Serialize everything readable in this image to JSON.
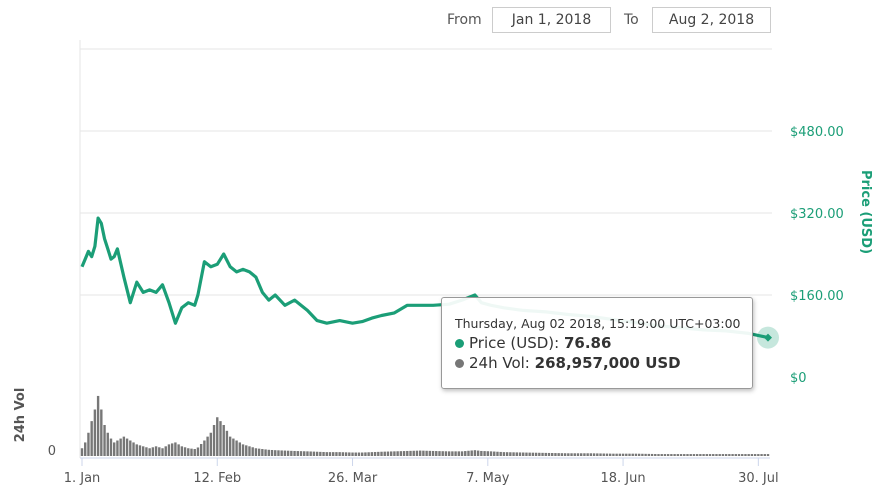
{
  "range_selector": {
    "from_label": "From",
    "from_value": "Jan 1, 2018",
    "to_label": "To",
    "to_value": "Aug 2, 2018"
  },
  "tooltip": {
    "date": "Thursday, Aug 02 2018, 15:19:00 UTC+03:00",
    "price_label": "Price (USD):",
    "price_value": "76.86",
    "vol_label": "24h Vol:",
    "vol_value": "268,957,000 USD"
  },
  "colors": {
    "price": "#1b9e77",
    "volume": "#777777",
    "marker": "#1b9e77"
  },
  "chart_data": {
    "type": "line",
    "x_unit": "date",
    "x_ticks": [
      "1. Jan",
      "12. Feb",
      "26. Mar",
      "7. May",
      "18. Jun",
      "30. Jul"
    ],
    "price_axis": {
      "title": "Price (USD)",
      "ticks": [
        "$0",
        "$160.00",
        "$320.00",
        "$480.00"
      ],
      "ylim": [
        0,
        640
      ]
    },
    "volume_axis": {
      "title": "24h Vol",
      "ticks": [
        "0"
      ]
    },
    "grid": true,
    "series": [
      {
        "name": "Price (USD)",
        "x": [
          "2018-01-01",
          "2018-01-02",
          "2018-01-03",
          "2018-01-04",
          "2018-01-05",
          "2018-01-06",
          "2018-01-07",
          "2018-01-08",
          "2018-01-09",
          "2018-01-10",
          "2018-01-11",
          "2018-01-12",
          "2018-01-14",
          "2018-01-16",
          "2018-01-18",
          "2018-01-20",
          "2018-01-22",
          "2018-01-24",
          "2018-01-26",
          "2018-01-28",
          "2018-01-30",
          "2018-02-01",
          "2018-02-03",
          "2018-02-05",
          "2018-02-06",
          "2018-02-08",
          "2018-02-10",
          "2018-02-12",
          "2018-02-14",
          "2018-02-16",
          "2018-02-18",
          "2018-02-20",
          "2018-02-22",
          "2018-02-24",
          "2018-02-26",
          "2018-02-28",
          "2018-03-02",
          "2018-03-05",
          "2018-03-08",
          "2018-03-12",
          "2018-03-15",
          "2018-03-18",
          "2018-03-22",
          "2018-03-26",
          "2018-03-29",
          "2018-04-01",
          "2018-04-04",
          "2018-04-08",
          "2018-04-12",
          "2018-04-16",
          "2018-04-20",
          "2018-04-25",
          "2018-04-29",
          "2018-05-03",
          "2018-05-05",
          "2018-05-08",
          "2018-05-12",
          "2018-05-18",
          "2018-05-25",
          "2018-06-01",
          "2018-06-08",
          "2018-06-15",
          "2018-06-22",
          "2018-06-29",
          "2018-07-06",
          "2018-07-13",
          "2018-07-20",
          "2018-07-27",
          "2018-08-02"
        ],
        "y": [
          215,
          230,
          245,
          235,
          255,
          310,
          300,
          270,
          250,
          230,
          235,
          250,
          195,
          145,
          185,
          165,
          170,
          165,
          180,
          145,
          105,
          135,
          145,
          140,
          160,
          225,
          215,
          220,
          240,
          215,
          205,
          210,
          205,
          195,
          165,
          150,
          160,
          140,
          150,
          130,
          110,
          105,
          110,
          105,
          108,
          115,
          120,
          125,
          140,
          140,
          140,
          142,
          150,
          160,
          145,
          140,
          135,
          130,
          127,
          122,
          118,
          112,
          106,
          100,
          96,
          92,
          90,
          85,
          76.86
        ]
      },
      {
        "name": "24h Vol",
        "x": [
          "2018-01-01",
          "2018-01-02",
          "2018-01-03",
          "2018-01-04",
          "2018-01-05",
          "2018-01-06",
          "2018-01-07",
          "2018-01-08",
          "2018-01-09",
          "2018-01-10",
          "2018-01-11",
          "2018-01-12",
          "2018-01-14",
          "2018-01-16",
          "2018-01-18",
          "2018-01-20",
          "2018-01-22",
          "2018-01-24",
          "2018-01-26",
          "2018-01-28",
          "2018-01-30",
          "2018-02-01",
          "2018-02-03",
          "2018-02-05",
          "2018-02-06",
          "2018-02-08",
          "2018-02-10",
          "2018-02-12",
          "2018-02-14",
          "2018-02-16",
          "2018-02-18",
          "2018-02-20",
          "2018-02-22",
          "2018-02-24",
          "2018-02-26",
          "2018-02-28",
          "2018-03-02",
          "2018-03-05",
          "2018-03-08",
          "2018-03-12",
          "2018-03-15",
          "2018-03-18",
          "2018-03-22",
          "2018-03-26",
          "2018-03-29",
          "2018-04-01",
          "2018-04-04",
          "2018-04-08",
          "2018-04-12",
          "2018-04-16",
          "2018-04-20",
          "2018-04-25",
          "2018-04-29",
          "2018-05-03",
          "2018-05-05",
          "2018-05-08",
          "2018-05-12",
          "2018-05-18",
          "2018-05-25",
          "2018-06-01",
          "2018-06-08",
          "2018-06-15",
          "2018-06-22",
          "2018-06-29",
          "2018-07-06",
          "2018-07-13",
          "2018-07-20",
          "2018-07-27",
          "2018-08-02"
        ],
        "y": [
          2.0,
          3.5,
          6.0,
          9.0,
          12.0,
          15.5,
          12.0,
          8.0,
          6.0,
          4.5,
          3.5,
          4.0,
          5.0,
          4.0,
          3.0,
          2.5,
          2.0,
          2.5,
          2.0,
          3.0,
          3.5,
          2.5,
          2.0,
          1.8,
          2.2,
          4.0,
          6.0,
          10.0,
          8.0,
          5.0,
          4.0,
          3.0,
          2.5,
          2.0,
          1.8,
          1.6,
          1.5,
          1.4,
          1.3,
          1.2,
          1.1,
          1.0,
          1.0,
          0.9,
          0.9,
          1.0,
          1.1,
          1.2,
          1.3,
          1.4,
          1.3,
          1.2,
          1.2,
          1.5,
          1.3,
          1.2,
          1.0,
          0.9,
          0.8,
          0.7,
          0.7,
          0.6,
          0.6,
          0.5,
          0.5,
          0.5,
          0.5,
          0.5,
          0.5
        ]
      }
    ]
  }
}
